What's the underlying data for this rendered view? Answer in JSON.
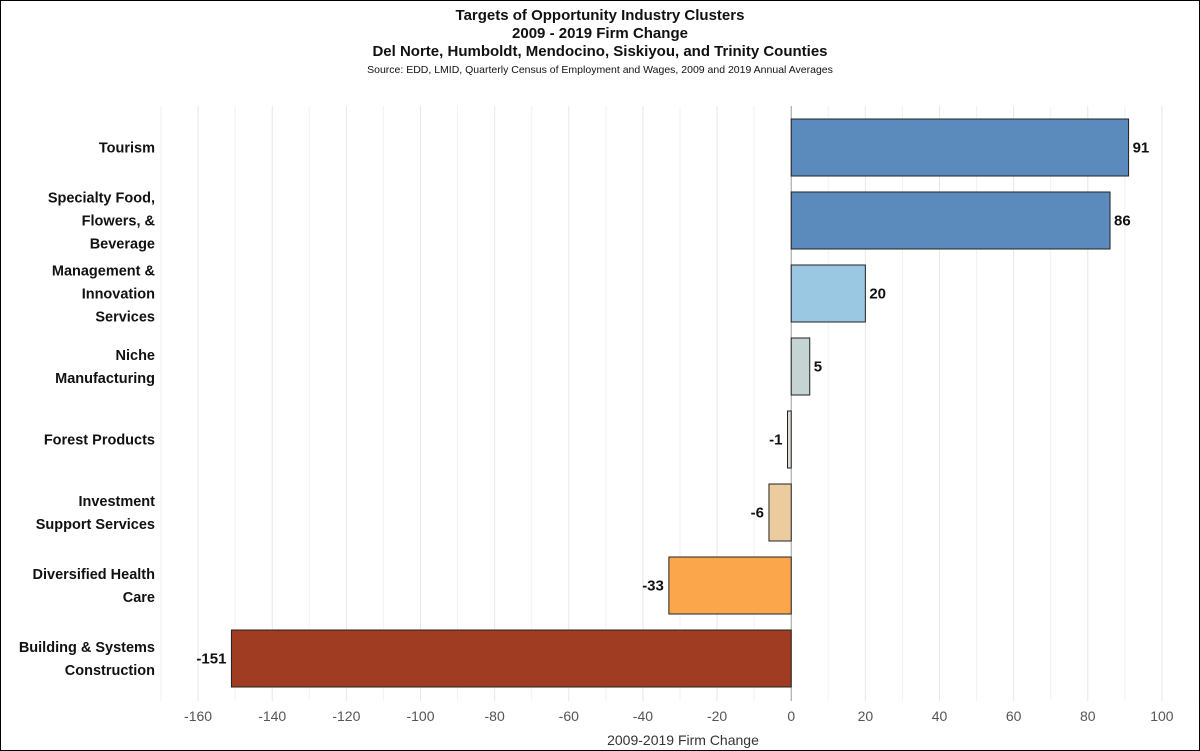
{
  "chart_data": {
    "type": "bar",
    "orientation": "horizontal",
    "title": "Targets of Opportunity Industry Clusters",
    "subtitle_lines": [
      "2009 - 2019 Firm Change",
      "Del Norte, Humboldt, Mendocino, Siskiyou, and Trinity Counties"
    ],
    "source": "Source: EDD, LMID, Quarterly Census of Employment and Wages, 2009 and 2019 Annual Averages",
    "xlabel": "2009-2019 Firm Change",
    "xlim": [
      -170,
      110
    ],
    "xticks": [
      -160,
      -140,
      -120,
      -100,
      -80,
      -60,
      -40,
      -20,
      0,
      20,
      40,
      60,
      80,
      100
    ],
    "grid": true,
    "categories": [
      [
        "Tourism"
      ],
      [
        "Specialty Food,",
        "Flowers, &",
        "Beverage"
      ],
      [
        "Management &",
        "Innovation",
        "Services"
      ],
      [
        "Niche",
        "Manufacturing"
      ],
      [
        "Forest Products"
      ],
      [
        "Investment",
        "Support Services"
      ],
      [
        "Diversified Health",
        "Care"
      ],
      [
        "Building & Systems",
        "Construction"
      ]
    ],
    "values": [
      91,
      86,
      20,
      5,
      -1,
      -6,
      -33,
      -151
    ],
    "value_labels": [
      "91",
      "86",
      "20",
      "5",
      "-1",
      "-6",
      "-33",
      "-151"
    ],
    "colors": [
      "#5b8bbd",
      "#5b8bbd",
      "#9ac8e3",
      "#c5d3d2",
      "#e3ded6",
      "#eccb9f",
      "#fca64b",
      "#a03c22"
    ]
  }
}
